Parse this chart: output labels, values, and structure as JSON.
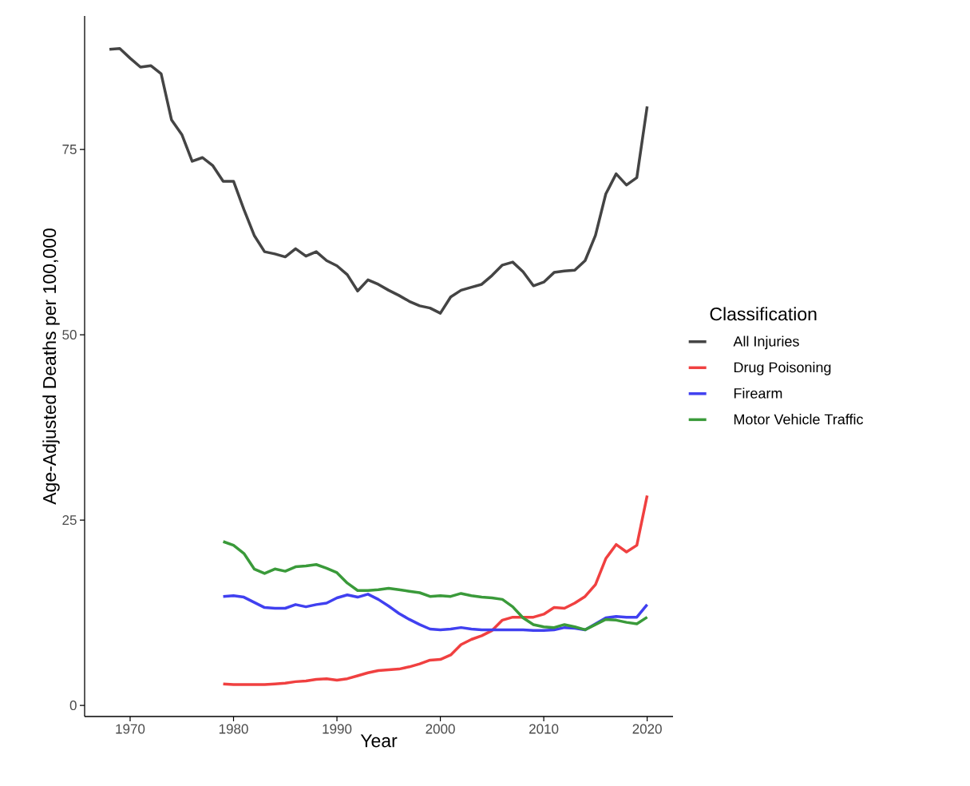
{
  "chart_data": {
    "type": "line",
    "xlabel": "Year",
    "ylabel": "Age-Adjusted Deaths per 100,000",
    "legend_title": "Classification",
    "legend": "right",
    "grid": false,
    "line_style": "solid",
    "marker": "none",
    "xlim": [
      1965.6,
      2022.5
    ],
    "ylim": [
      -1.5,
      93
    ],
    "xticks": [
      1970,
      1980,
      1990,
      2000,
      2010,
      2020
    ],
    "yticks": [
      0,
      25,
      50,
      75
    ],
    "series": [
      {
        "name": "All Injuries",
        "color": "#444444",
        "x": [
          1968,
          1969,
          1970,
          1971,
          1972,
          1973,
          1974,
          1975,
          1976,
          1977,
          1978,
          1979,
          1980,
          1981,
          1982,
          1983,
          1984,
          1985,
          1986,
          1987,
          1988,
          1989,
          1990,
          1991,
          1992,
          1993,
          1994,
          1995,
          1996,
          1997,
          1998,
          1999,
          2000,
          2001,
          2002,
          2003,
          2004,
          2005,
          2006,
          2007,
          2008,
          2009,
          2010,
          2011,
          2012,
          2013,
          2014,
          2015,
          2016,
          2017,
          2018,
          2019,
          2020
        ],
        "values": [
          88.5,
          88.6,
          87.3,
          86.1,
          86.3,
          85.2,
          79.0,
          77.0,
          73.4,
          73.9,
          72.8,
          70.7,
          70.7,
          66.9,
          63.4,
          61.2,
          60.9,
          60.5,
          61.6,
          60.6,
          61.2,
          60.0,
          59.3,
          58.1,
          55.9,
          57.4,
          56.8,
          56.0,
          55.3,
          54.5,
          53.9,
          53.6,
          52.9,
          55.1,
          56.0,
          56.4,
          56.8,
          58.0,
          59.4,
          59.8,
          58.5,
          56.6,
          57.1,
          58.4,
          58.6,
          58.7,
          60.0,
          63.4,
          69.0,
          71.7,
          70.2,
          71.2,
          80.8
        ]
      },
      {
        "name": "Drug Poisoning",
        "color": "#f04040",
        "x": [
          1979,
          1980,
          1981,
          1982,
          1983,
          1984,
          1985,
          1986,
          1987,
          1988,
          1989,
          1990,
          1991,
          1992,
          1993,
          1994,
          1995,
          1996,
          1997,
          1998,
          1999,
          2000,
          2001,
          2002,
          2003,
          2004,
          2005,
          2006,
          2007,
          2008,
          2009,
          2010,
          2011,
          2012,
          2013,
          2014,
          2015,
          2016,
          2017,
          2018,
          2019,
          2020
        ],
        "values": [
          2.9,
          2.8,
          2.8,
          2.8,
          2.8,
          2.9,
          3.0,
          3.2,
          3.3,
          3.5,
          3.6,
          3.4,
          3.6,
          4.0,
          4.4,
          4.7,
          4.8,
          4.9,
          5.2,
          5.6,
          6.1,
          6.2,
          6.8,
          8.2,
          8.9,
          9.4,
          10.1,
          11.5,
          11.9,
          11.9,
          11.9,
          12.3,
          13.2,
          13.1,
          13.8,
          14.7,
          16.3,
          19.8,
          21.7,
          20.7,
          21.6,
          28.3
        ]
      },
      {
        "name": "Firearm",
        "color": "#4040f0",
        "x": [
          1979,
          1980,
          1981,
          1982,
          1983,
          1984,
          1985,
          1986,
          1987,
          1988,
          1989,
          1990,
          1991,
          1992,
          1993,
          1994,
          1995,
          1996,
          1997,
          1998,
          1999,
          2000,
          2001,
          2002,
          2003,
          2004,
          2005,
          2006,
          2007,
          2008,
          2009,
          2010,
          2011,
          2012,
          2013,
          2014,
          2015,
          2016,
          2017,
          2018,
          2019,
          2020
        ],
        "values": [
          14.7,
          14.8,
          14.6,
          13.9,
          13.2,
          13.1,
          13.1,
          13.6,
          13.3,
          13.6,
          13.8,
          14.5,
          14.9,
          14.6,
          15.0,
          14.3,
          13.4,
          12.4,
          11.6,
          10.9,
          10.3,
          10.2,
          10.3,
          10.5,
          10.3,
          10.2,
          10.2,
          10.2,
          10.2,
          10.2,
          10.1,
          10.1,
          10.2,
          10.5,
          10.4,
          10.2,
          11.0,
          11.8,
          12.0,
          11.9,
          11.9,
          13.6
        ]
      },
      {
        "name": "Motor Vehicle Traffic",
        "color": "#3a9a3a",
        "x": [
          1979,
          1980,
          1981,
          1982,
          1983,
          1984,
          1985,
          1986,
          1987,
          1988,
          1989,
          1990,
          1991,
          1992,
          1993,
          1994,
          1995,
          1996,
          1997,
          1998,
          1999,
          2000,
          2001,
          2002,
          2003,
          2004,
          2005,
          2006,
          2007,
          2008,
          2009,
          2010,
          2011,
          2012,
          2013,
          2014,
          2015,
          2016,
          2017,
          2018,
          2019,
          2020
        ],
        "values": [
          22.1,
          21.6,
          20.5,
          18.4,
          17.8,
          18.4,
          18.1,
          18.7,
          18.8,
          19.0,
          18.5,
          17.9,
          16.5,
          15.5,
          15.5,
          15.6,
          15.8,
          15.6,
          15.4,
          15.2,
          14.7,
          14.8,
          14.7,
          15.1,
          14.8,
          14.6,
          14.5,
          14.3,
          13.3,
          11.8,
          10.9,
          10.6,
          10.5,
          10.9,
          10.6,
          10.2,
          10.9,
          11.6,
          11.5,
          11.2,
          11.0,
          11.9
        ]
      }
    ]
  }
}
